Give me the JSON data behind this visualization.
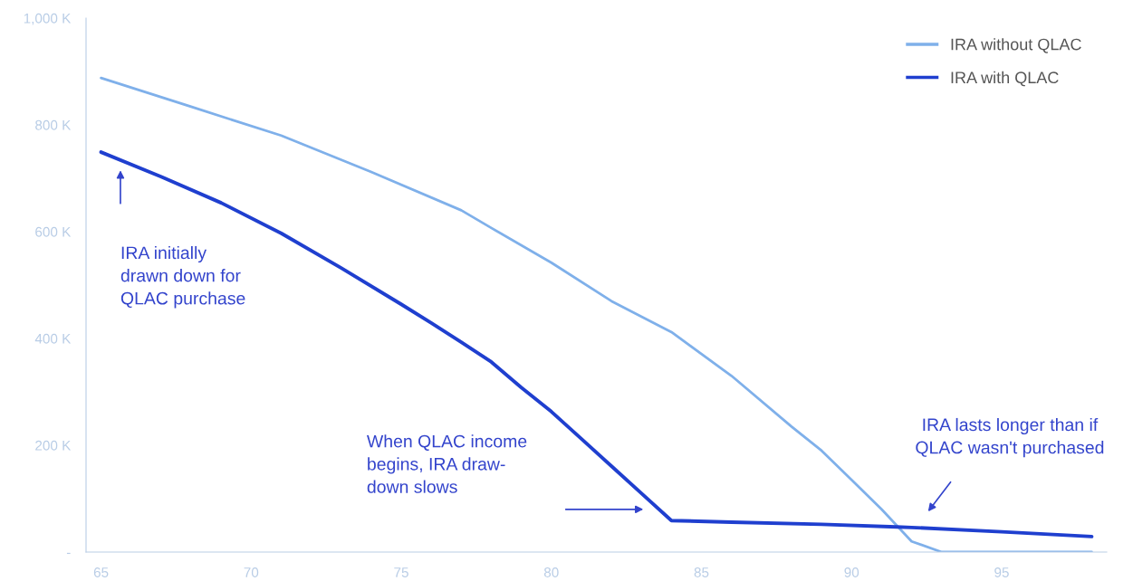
{
  "chart_data": {
    "type": "line",
    "x": [
      65,
      68,
      71,
      74,
      77,
      78,
      80,
      82,
      84,
      86,
      88,
      89,
      90,
      91,
      92,
      93,
      98
    ],
    "series": [
      {
        "name": "IRA without QLAC",
        "color": "#7fb0ea",
        "values": [
          888,
          834,
          780,
          712,
          640,
          607,
          542,
          470,
          412,
          330,
          235,
          190,
          135,
          80,
          20,
          0,
          0
        ]
      },
      {
        "name": "IRA with QLAC",
        "color": "#1f3fcf",
        "x": [
          65,
          67,
          69,
          71,
          73,
          75,
          76,
          77,
          78,
          79,
          80,
          81,
          82,
          83,
          84,
          86,
          89,
          91.5,
          92,
          95,
          98
        ],
        "values": [
          749,
          703,
          654,
          597,
          532,
          464,
          429,
          393,
          356,
          308,
          263,
          212,
          161,
          110,
          59,
          56,
          52,
          47,
          46,
          38,
          29
        ]
      }
    ],
    "xlim": [
      64.5,
      98.5
    ],
    "xticks": [
      65,
      70,
      75,
      80,
      85,
      90,
      95
    ],
    "ylim": [
      0,
      1000
    ],
    "yticks": [
      {
        "value": 0,
        "label": "-"
      },
      {
        "value": 200,
        "label": "200 K"
      },
      {
        "value": 400,
        "label": "400 K"
      },
      {
        "value": 600,
        "label": "600 K"
      },
      {
        "value": 800,
        "label": "800 K"
      },
      {
        "value": 1000,
        "label": "1,000 K"
      }
    ],
    "grid": false,
    "legend": "top right",
    "marker": "none",
    "line_style": "solid",
    "annotations": [
      "IRA initially\ndrawn down for\nQLAC purchase",
      "When QLAC income\nbegins, IRA draw-\ndown slows",
      "IRA lasts longer than if\nQLAC wasn't purchased"
    ]
  }
}
